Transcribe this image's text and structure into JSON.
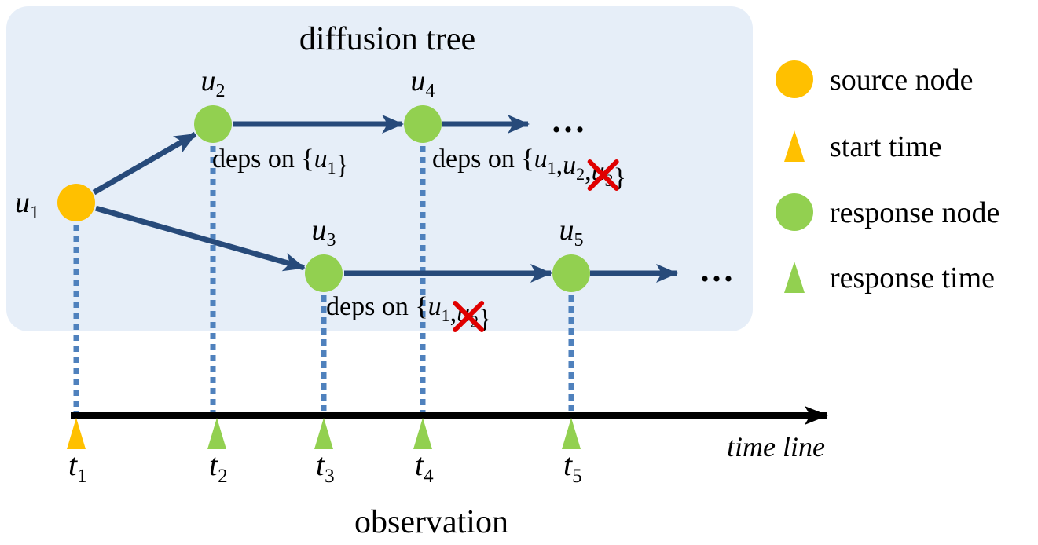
{
  "title": "diffusion tree",
  "footer": "observation",
  "axis": {
    "label": "time line"
  },
  "colors": {
    "panel": "#e6eef8",
    "edge": "#274a7a",
    "dotted": "#4f81bd",
    "source": "#ffc000",
    "response": "#92d050",
    "cross": "#e00000",
    "axis": "#000000"
  },
  "nodes": [
    {
      "id": "u1",
      "sym": "u",
      "sub": "1",
      "kind": "source"
    },
    {
      "id": "u2",
      "sym": "u",
      "sub": "2",
      "kind": "response"
    },
    {
      "id": "u3",
      "sym": "u",
      "sub": "3",
      "kind": "response"
    },
    {
      "id": "u4",
      "sym": "u",
      "sub": "4",
      "kind": "response"
    },
    {
      "id": "u5",
      "sym": "u",
      "sub": "5",
      "kind": "response"
    }
  ],
  "edges": [
    {
      "from": "u1",
      "to": "u2"
    },
    {
      "from": "u1",
      "to": "u3"
    },
    {
      "from": "u2",
      "to": "u4"
    },
    {
      "from": "u3",
      "to": "u5"
    }
  ],
  "continuations": [
    "u4",
    "u5"
  ],
  "ellipsis": "...",
  "deps": [
    {
      "node": "u2",
      "prefix": "deps on ",
      "open": "{",
      "close": "}",
      "items": [
        {
          "sym": "u",
          "sub": "1",
          "crossed": false
        }
      ]
    },
    {
      "node": "u4",
      "prefix": "deps on ",
      "open": "{",
      "close": "}",
      "items": [
        {
          "sym": "u",
          "sub": "1",
          "crossed": false
        },
        {
          "sym": "u",
          "sub": "2",
          "crossed": false
        },
        {
          "sym": "u",
          "sub": "3",
          "crossed": true
        }
      ]
    },
    {
      "node": "u3",
      "prefix": "deps on ",
      "open": "{",
      "close": "}",
      "items": [
        {
          "sym": "u",
          "sub": "1",
          "crossed": false
        },
        {
          "sym": "u",
          "sub": "2",
          "crossed": true
        }
      ]
    }
  ],
  "times": [
    {
      "sym": "t",
      "sub": "1",
      "kind": "start"
    },
    {
      "sym": "t",
      "sub": "2",
      "kind": "response"
    },
    {
      "sym": "t",
      "sub": "3",
      "kind": "response"
    },
    {
      "sym": "t",
      "sub": "4",
      "kind": "response"
    },
    {
      "sym": "t",
      "sub": "5",
      "kind": "response"
    }
  ],
  "legend": [
    {
      "shape": "circle",
      "kind": "source",
      "label": "source node"
    },
    {
      "shape": "triangle",
      "kind": "source",
      "label": "start time"
    },
    {
      "shape": "circle",
      "kind": "response",
      "label": "response node"
    },
    {
      "shape": "triangle",
      "kind": "response",
      "label": "response time"
    }
  ]
}
